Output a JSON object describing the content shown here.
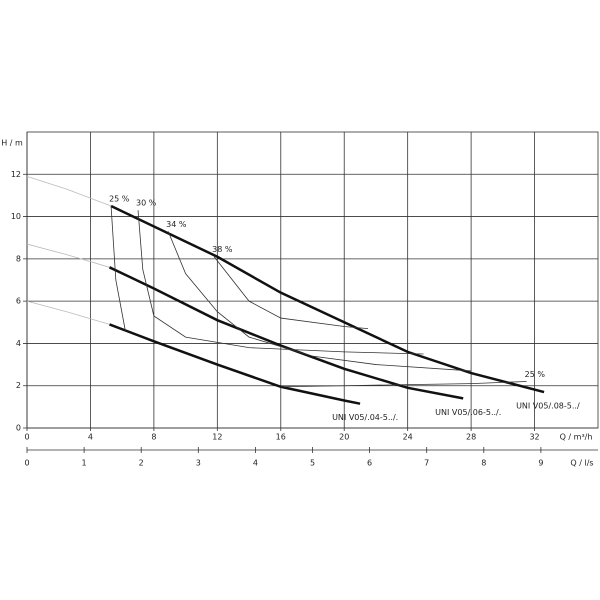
{
  "chart_data": {
    "type": "line",
    "ylabel": "H / m",
    "xlabel": "Q / m³/h",
    "x2label": "Q / l/s",
    "xlim": [
      0,
      36
    ],
    "xticks": [
      0,
      4,
      8,
      12,
      16,
      20,
      24,
      28,
      32
    ],
    "ylim": [
      0,
      14
    ],
    "yticks": [
      0,
      2,
      4,
      6,
      8,
      10,
      12
    ],
    "x2lim": [
      0,
      10
    ],
    "x2ticks": [
      0,
      1,
      2,
      3,
      4,
      5,
      6,
      7,
      8,
      9
    ],
    "grid": true,
    "series": [
      {
        "name": "UNI V05/.08-5../",
        "color": "#111",
        "width": 2.5,
        "x": [
          5.3,
          12,
          16,
          20,
          24,
          28,
          32.6
        ],
        "values": [
          10.5,
          8.1,
          6.4,
          5.0,
          3.6,
          2.6,
          1.7
        ]
      },
      {
        "name": "UNI V05/.06-5../.",
        "color": "#111",
        "width": 2.5,
        "x": [
          5.2,
          8,
          12,
          16,
          20,
          24,
          27.5
        ],
        "values": [
          7.6,
          6.6,
          5.1,
          3.9,
          2.8,
          1.9,
          1.4
        ]
      },
      {
        "name": "UNI V05/.04-5../.",
        "color": "#111",
        "width": 2.5,
        "x": [
          5.2,
          8,
          12,
          16,
          20,
          21
        ],
        "values": [
          4.9,
          4.1,
          3.0,
          1.95,
          1.3,
          1.15
        ]
      },
      {
        "color": "#bbb",
        "width": 0.8,
        "x": [
          0,
          2.5,
          5.3
        ],
        "values": [
          11.9,
          11.3,
          10.5
        ]
      },
      {
        "color": "#bbb",
        "width": 0.8,
        "x": [
          0,
          2.5,
          5.2
        ],
        "values": [
          8.7,
          8.2,
          7.6
        ]
      },
      {
        "color": "#bbb",
        "width": 0.8,
        "x": [
          0,
          2.5,
          5.2
        ],
        "values": [
          6.0,
          5.5,
          4.9
        ]
      },
      {
        "name": "25 %",
        "color": "#333",
        "width": 0.8,
        "x": [
          5.3,
          5.6,
          6.2
        ],
        "values": [
          10.5,
          7.0,
          4.6
        ]
      },
      {
        "name": "30 %",
        "color": "#333",
        "width": 0.8,
        "x": [
          7.0,
          7.3,
          8.0,
          10,
          14,
          20,
          25
        ],
        "values": [
          10.3,
          7.5,
          5.3,
          4.3,
          3.8,
          3.6,
          3.5
        ]
      },
      {
        "name": "34 %",
        "color": "#333",
        "width": 0.8,
        "x": [
          8.9,
          10,
          12,
          14,
          18,
          22,
          28
        ],
        "values": [
          9.3,
          7.3,
          5.5,
          4.3,
          3.4,
          3.0,
          2.7
        ]
      },
      {
        "name": "38 %",
        "color": "#333",
        "width": 0.8,
        "x": [
          11.8,
          14,
          16,
          20,
          21.5
        ],
        "values": [
          8.1,
          6.0,
          5.2,
          4.8,
          4.7
        ]
      },
      {
        "name": "25 %",
        "color": "#333",
        "width": 0.8,
        "x": [
          31.5,
          28,
          24,
          20,
          16
        ],
        "values": [
          2.2,
          2.1,
          2.05,
          2.0,
          1.95
        ]
      }
    ]
  }
}
